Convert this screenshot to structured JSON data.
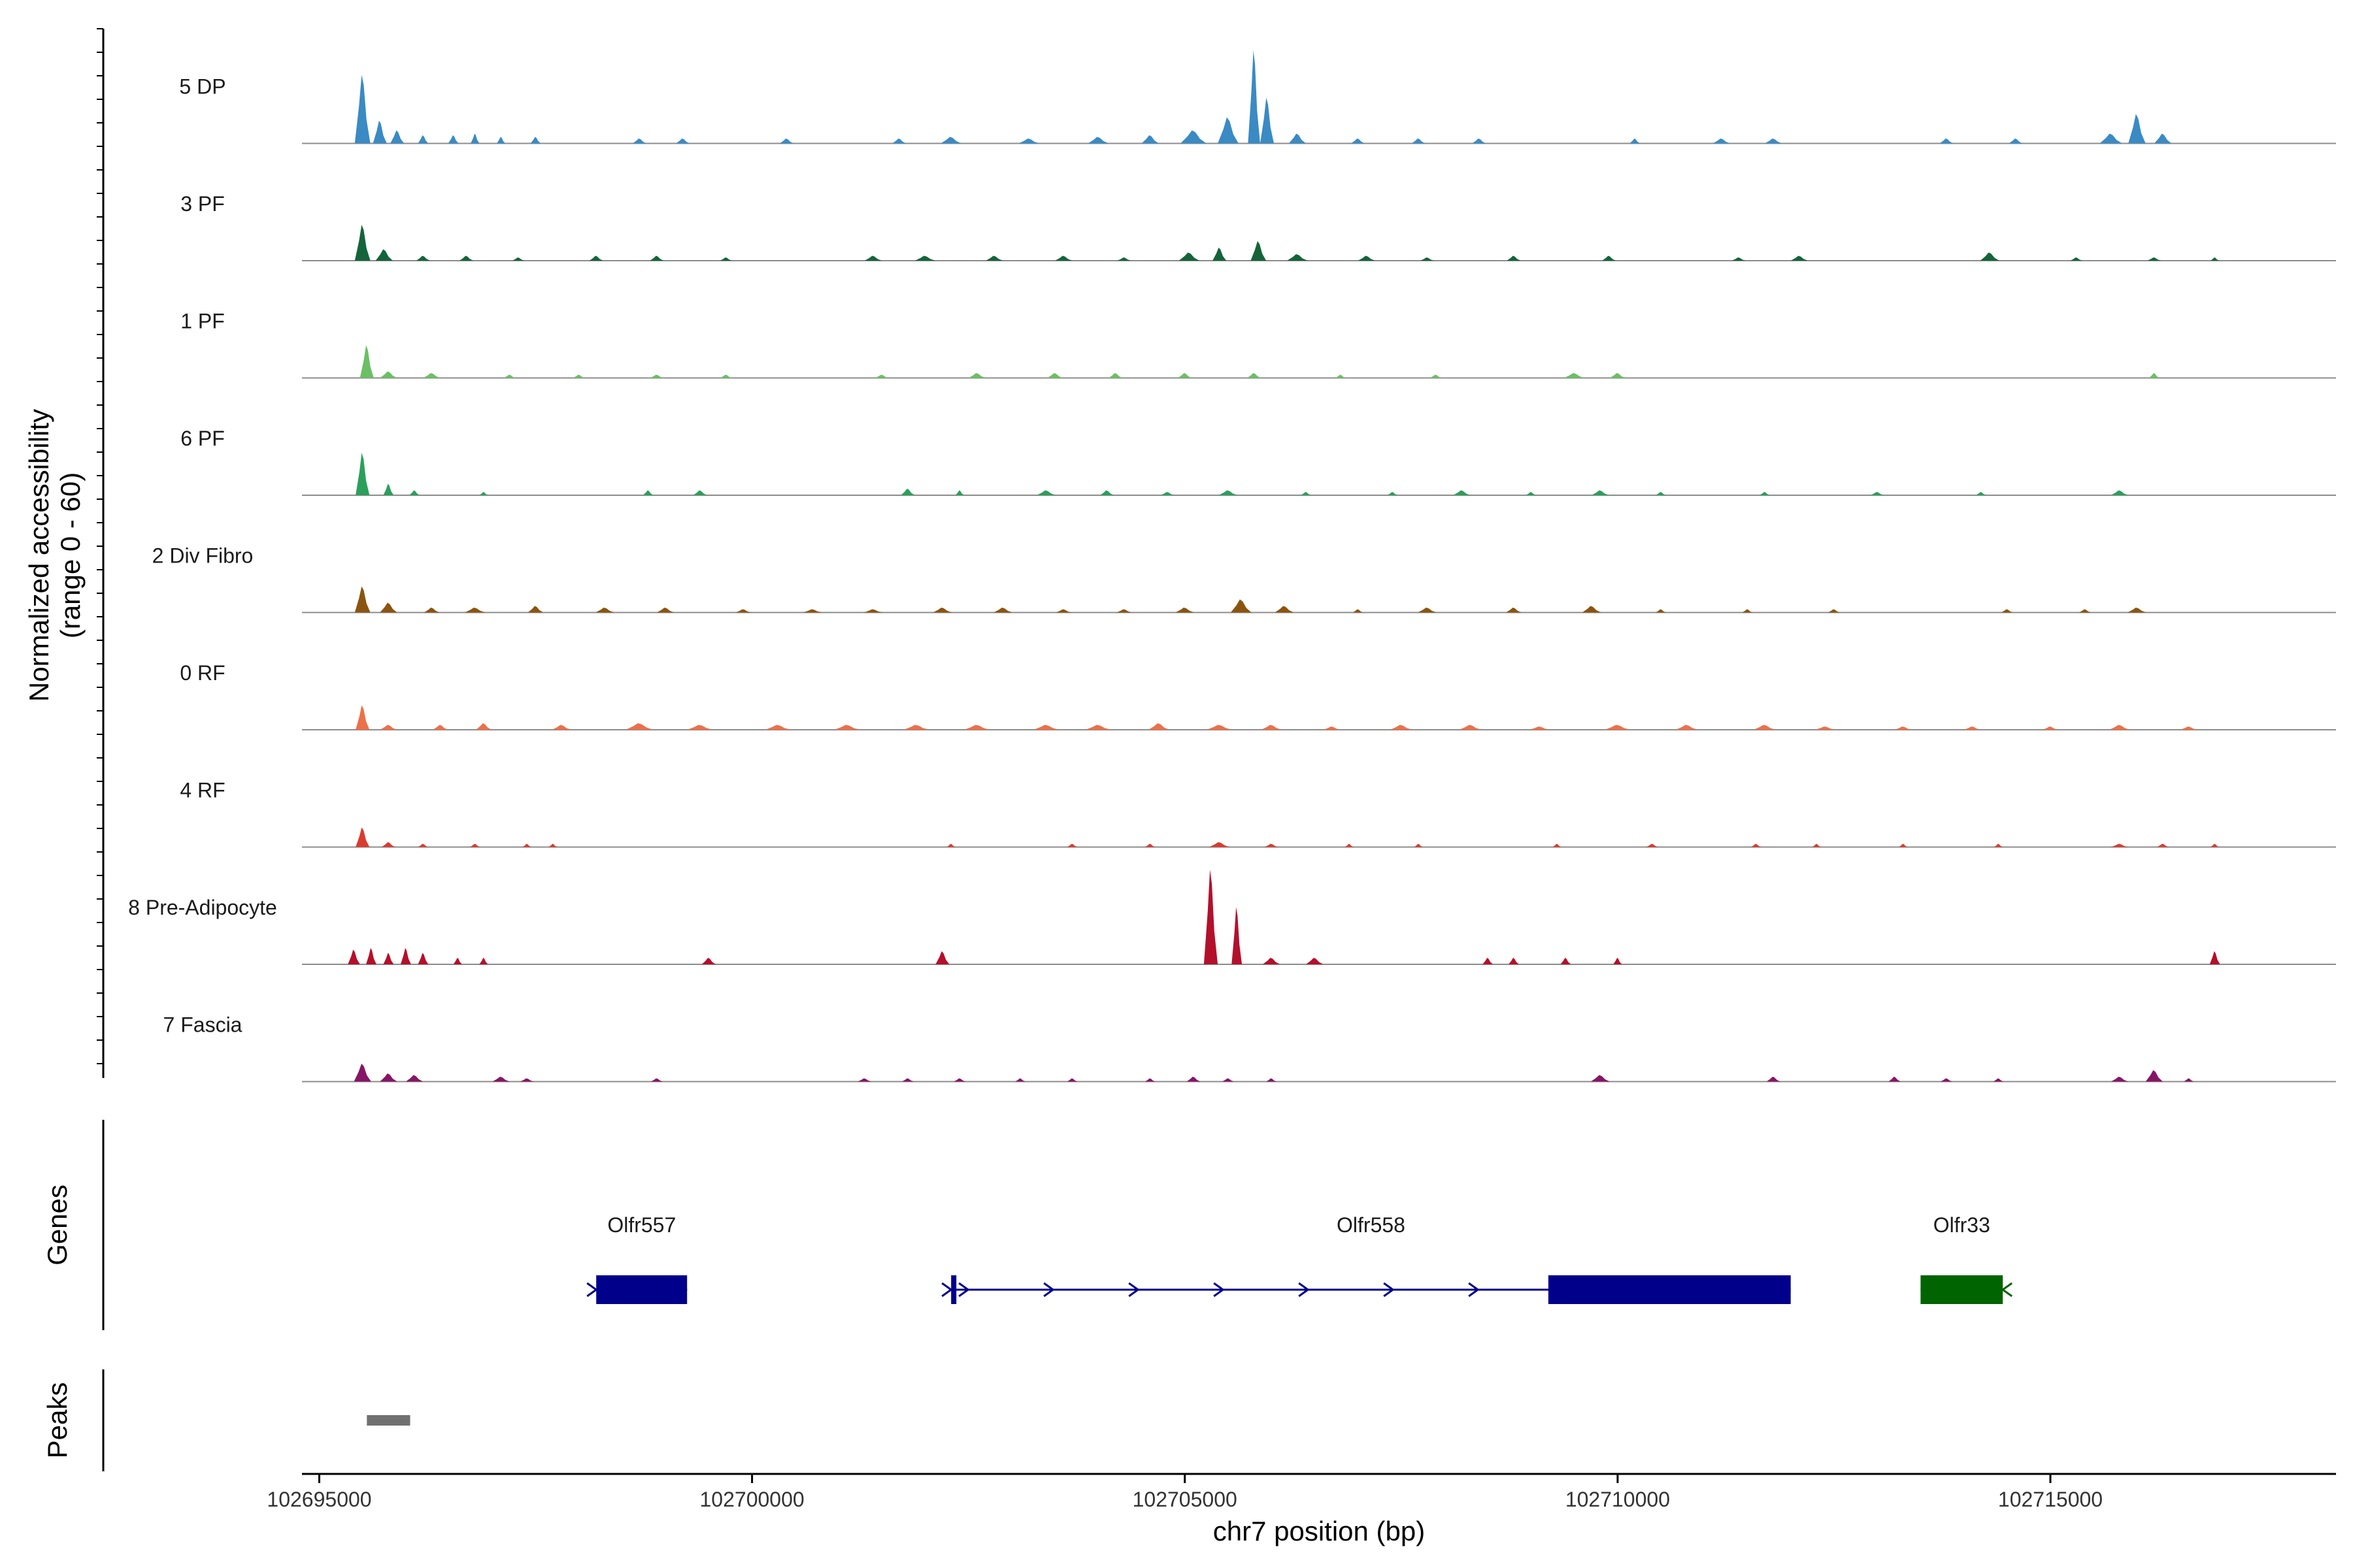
{
  "chart_data": {
    "type": "area",
    "title": "",
    "xlabel": "chr7 position (bp)",
    "ylabel_lines": [
      "Normalized accessibility",
      "(range 0 - 60)"
    ],
    "ylim": [
      0,
      60
    ],
    "xlim": [
      102694800,
      102718300
    ],
    "x_ticks": [
      102695000,
      102700000,
      102705000,
      102710000,
      102715000
    ],
    "x_tick_labels": [
      "102695000",
      "102700000",
      "102705000",
      "102710000",
      "102715000"
    ],
    "genes_panel_label": "Genes",
    "peaks_panel_label": "Peaks",
    "tracks": [
      {
        "name": "5 DP",
        "color": "#3a8ac4",
        "peaks": [
          [
            102695500,
            42,
            90
          ],
          [
            102695700,
            14,
            80
          ],
          [
            102695900,
            8,
            80
          ],
          [
            102696200,
            5,
            60
          ],
          [
            102696550,
            5,
            60
          ],
          [
            102696800,
            6,
            50
          ],
          [
            102697100,
            4,
            50
          ],
          [
            102697500,
            4,
            60
          ],
          [
            102698700,
            3,
            80
          ],
          [
            102699200,
            3,
            80
          ],
          [
            102700400,
            3,
            80
          ],
          [
            102701700,
            3,
            80
          ],
          [
            102702300,
            4,
            120
          ],
          [
            102703200,
            3,
            120
          ],
          [
            102704000,
            4,
            120
          ],
          [
            102704600,
            5,
            100
          ],
          [
            102705100,
            8,
            150
          ],
          [
            102705500,
            16,
            120
          ],
          [
            102705800,
            57,
            70
          ],
          [
            102705950,
            28,
            80
          ],
          [
            102706300,
            6,
            100
          ],
          [
            102707000,
            3,
            80
          ],
          [
            102707700,
            3,
            80
          ],
          [
            102708400,
            3,
            80
          ],
          [
            102710200,
            3,
            60
          ],
          [
            102711200,
            3,
            100
          ],
          [
            102711800,
            3,
            100
          ],
          [
            102713800,
            3,
            80
          ],
          [
            102714600,
            3,
            80
          ],
          [
            102715700,
            6,
            130
          ],
          [
            102716000,
            18,
            100
          ],
          [
            102716300,
            6,
            100
          ]
        ]
      },
      {
        "name": "3 PF",
        "color": "#14643a",
        "peaks": [
          [
            102695500,
            22,
            90
          ],
          [
            102695750,
            7,
            100
          ],
          [
            102696200,
            3,
            80
          ],
          [
            102696700,
            3,
            80
          ],
          [
            102697300,
            2,
            70
          ],
          [
            102698200,
            3,
            80
          ],
          [
            102698900,
            3,
            80
          ],
          [
            102699700,
            2,
            70
          ],
          [
            102701400,
            3,
            100
          ],
          [
            102702000,
            3,
            120
          ],
          [
            102702800,
            3,
            100
          ],
          [
            102703600,
            3,
            100
          ],
          [
            102704300,
            2,
            80
          ],
          [
            102705050,
            5,
            120
          ],
          [
            102705400,
            8,
            80
          ],
          [
            102705850,
            12,
            90
          ],
          [
            102706300,
            4,
            120
          ],
          [
            102707100,
            3,
            100
          ],
          [
            102707800,
            2,
            80
          ],
          [
            102708800,
            3,
            80
          ],
          [
            102709900,
            3,
            80
          ],
          [
            102711400,
            2,
            80
          ],
          [
            102712100,
            3,
            100
          ],
          [
            102714300,
            5,
            110
          ],
          [
            102715300,
            2,
            70
          ],
          [
            102716200,
            2,
            80
          ],
          [
            102716900,
            2,
            50
          ]
        ]
      },
      {
        "name": "1 PF",
        "color": "#6cbf64",
        "peaks": [
          [
            102695550,
            20,
            80
          ],
          [
            102695800,
            4,
            100
          ],
          [
            102696300,
            3,
            100
          ],
          [
            102697200,
            2,
            70
          ],
          [
            102698000,
            2,
            70
          ],
          [
            102698900,
            2,
            80
          ],
          [
            102699700,
            2,
            70
          ],
          [
            102701500,
            2,
            80
          ],
          [
            102702600,
            3,
            100
          ],
          [
            102703500,
            3,
            90
          ],
          [
            102704200,
            3,
            80
          ],
          [
            102705000,
            3,
            80
          ],
          [
            102705800,
            3,
            80
          ],
          [
            102706800,
            2,
            60
          ],
          [
            102707900,
            2,
            70
          ],
          [
            102709500,
            3,
            120
          ],
          [
            102710000,
            3,
            90
          ],
          [
            102716200,
            3,
            60
          ]
        ]
      },
      {
        "name": "6 PF",
        "color": "#2aa05a",
        "peaks": [
          [
            102695500,
            26,
            80
          ],
          [
            102695800,
            7,
            60
          ],
          [
            102696100,
            3,
            60
          ],
          [
            102696900,
            2,
            50
          ],
          [
            102698800,
            3,
            60
          ],
          [
            102699400,
            3,
            80
          ],
          [
            102701800,
            4,
            80
          ],
          [
            102702400,
            3,
            50
          ],
          [
            102703400,
            3,
            110
          ],
          [
            102704100,
            3,
            80
          ],
          [
            102704800,
            2,
            80
          ],
          [
            102705500,
            3,
            110
          ],
          [
            102706400,
            2,
            60
          ],
          [
            102707400,
            2,
            60
          ],
          [
            102708200,
            3,
            100
          ],
          [
            102709000,
            2,
            60
          ],
          [
            102709800,
            3,
            100
          ],
          [
            102710500,
            2,
            60
          ],
          [
            102711700,
            2,
            60
          ],
          [
            102713000,
            2,
            80
          ],
          [
            102714200,
            2,
            60
          ],
          [
            102715800,
            3,
            100
          ]
        ]
      },
      {
        "name": "2 Div Fibro",
        "color": "#8a5410",
        "peaks": [
          [
            102695500,
            16,
            90
          ],
          [
            102695800,
            6,
            100
          ],
          [
            102696300,
            3,
            90
          ],
          [
            102696800,
            3,
            120
          ],
          [
            102697500,
            4,
            90
          ],
          [
            102698300,
            3,
            110
          ],
          [
            102699000,
            3,
            100
          ],
          [
            102699900,
            2,
            90
          ],
          [
            102700700,
            2,
            110
          ],
          [
            102701400,
            2,
            110
          ],
          [
            102702200,
            3,
            110
          ],
          [
            102702900,
            3,
            110
          ],
          [
            102703600,
            2,
            90
          ],
          [
            102704300,
            2,
            90
          ],
          [
            102705000,
            3,
            110
          ],
          [
            102705650,
            8,
            120
          ],
          [
            102706150,
            4,
            110
          ],
          [
            102707000,
            2,
            60
          ],
          [
            102707800,
            3,
            110
          ],
          [
            102708800,
            3,
            90
          ],
          [
            102709700,
            4,
            110
          ],
          [
            102710500,
            2,
            60
          ],
          [
            102711500,
            2,
            60
          ],
          [
            102712500,
            2,
            70
          ],
          [
            102714500,
            2,
            70
          ],
          [
            102715400,
            2,
            70
          ],
          [
            102716000,
            3,
            110
          ]
        ]
      },
      {
        "name": "0 RF",
        "color": "#ec7049",
        "peaks": [
          [
            102695500,
            15,
            80
          ],
          [
            102695800,
            3,
            100
          ],
          [
            102696400,
            3,
            90
          ],
          [
            102696900,
            4,
            90
          ],
          [
            102697800,
            3,
            110
          ],
          [
            102698700,
            4,
            160
          ],
          [
            102699400,
            3,
            150
          ],
          [
            102700300,
            3,
            150
          ],
          [
            102701100,
            3,
            150
          ],
          [
            102701900,
            3,
            150
          ],
          [
            102702600,
            3,
            150
          ],
          [
            102703400,
            3,
            150
          ],
          [
            102704000,
            3,
            150
          ],
          [
            102704700,
            4,
            120
          ],
          [
            102705400,
            3,
            150
          ],
          [
            102706000,
            3,
            120
          ],
          [
            102706700,
            2,
            100
          ],
          [
            102707500,
            3,
            130
          ],
          [
            102708300,
            3,
            130
          ],
          [
            102709100,
            2,
            120
          ],
          [
            102710000,
            3,
            150
          ],
          [
            102710800,
            3,
            130
          ],
          [
            102711700,
            3,
            130
          ],
          [
            102712400,
            2,
            120
          ],
          [
            102713300,
            2,
            100
          ],
          [
            102714100,
            2,
            100
          ],
          [
            102715000,
            2,
            90
          ],
          [
            102715800,
            3,
            120
          ],
          [
            102716600,
            2,
            100
          ]
        ]
      },
      {
        "name": "4 RF",
        "color": "#db3a2e",
        "peaks": [
          [
            102695500,
            12,
            80
          ],
          [
            102695800,
            3,
            80
          ],
          [
            102696200,
            2,
            60
          ],
          [
            102696800,
            2,
            60
          ],
          [
            102697400,
            2,
            50
          ],
          [
            102697700,
            2,
            50
          ],
          [
            102702300,
            2,
            50
          ],
          [
            102703700,
            2,
            60
          ],
          [
            102704600,
            2,
            60
          ],
          [
            102705400,
            3,
            120
          ],
          [
            102706000,
            2,
            80
          ],
          [
            102706900,
            2,
            50
          ],
          [
            102707700,
            2,
            50
          ],
          [
            102709300,
            2,
            50
          ],
          [
            102710400,
            2,
            70
          ],
          [
            102711600,
            2,
            60
          ],
          [
            102712300,
            2,
            50
          ],
          [
            102713300,
            2,
            50
          ],
          [
            102714400,
            2,
            50
          ],
          [
            102715800,
            2,
            100
          ],
          [
            102716300,
            2,
            70
          ],
          [
            102716900,
            2,
            50
          ]
        ]
      },
      {
        "name": "8 Pre-Adipocyte",
        "color": "#b3102b",
        "peaks": [
          [
            102695400,
            9,
            70
          ],
          [
            102695600,
            10,
            60
          ],
          [
            102695800,
            7,
            60
          ],
          [
            102696000,
            10,
            60
          ],
          [
            102696200,
            7,
            60
          ],
          [
            102696600,
            4,
            50
          ],
          [
            102696900,
            4,
            50
          ],
          [
            102699500,
            4,
            80
          ],
          [
            102702200,
            8,
            80
          ],
          [
            102705300,
            58,
            80
          ],
          [
            102705600,
            35,
            60
          ],
          [
            102706000,
            4,
            100
          ],
          [
            102706500,
            4,
            100
          ],
          [
            102708500,
            4,
            60
          ],
          [
            102708800,
            4,
            60
          ],
          [
            102709400,
            4,
            60
          ],
          [
            102710000,
            4,
            50
          ],
          [
            102716900,
            8,
            60
          ]
        ]
      },
      {
        "name": "7 Fascia",
        "color": "#861565",
        "peaks": [
          [
            102695500,
            11,
            100
          ],
          [
            102695800,
            5,
            100
          ],
          [
            102696100,
            4,
            100
          ],
          [
            102697100,
            3,
            100
          ],
          [
            102697400,
            2,
            80
          ],
          [
            102698900,
            2,
            70
          ],
          [
            102701300,
            2,
            80
          ],
          [
            102701800,
            2,
            70
          ],
          [
            102702400,
            2,
            70
          ],
          [
            102703100,
            2,
            60
          ],
          [
            102703700,
            2,
            60
          ],
          [
            102704600,
            2,
            60
          ],
          [
            102705100,
            3,
            80
          ],
          [
            102705500,
            2,
            70
          ],
          [
            102706000,
            2,
            60
          ],
          [
            102709800,
            4,
            110
          ],
          [
            102711800,
            3,
            80
          ],
          [
            102713200,
            3,
            70
          ],
          [
            102713800,
            2,
            70
          ],
          [
            102714400,
            2,
            60
          ],
          [
            102715800,
            3,
            100
          ],
          [
            102716200,
            7,
            100
          ],
          [
            102716600,
            2,
            60
          ]
        ]
      }
    ],
    "genes": [
      {
        "name": "Olfr557",
        "start": 102698200,
        "end": 102699250,
        "strand": "+",
        "color": "#00008b",
        "exons": [
          [
            102698200,
            102699250
          ]
        ]
      },
      {
        "name": "Olfr558",
        "start": 102702300,
        "end": 102712000,
        "strand": "+",
        "color": "#00008b",
        "exons": [
          [
            102702300,
            102702360
          ],
          [
            102709200,
            102712000
          ]
        ]
      },
      {
        "name": "Olfr33",
        "start": 102713500,
        "end": 102714450,
        "strand": "-",
        "color": "#006400",
        "exons": [
          [
            102713500,
            102714450
          ]
        ]
      }
    ],
    "peak_regions": [
      {
        "start": 102695550,
        "end": 102696050,
        "color": "#707070"
      }
    ]
  }
}
